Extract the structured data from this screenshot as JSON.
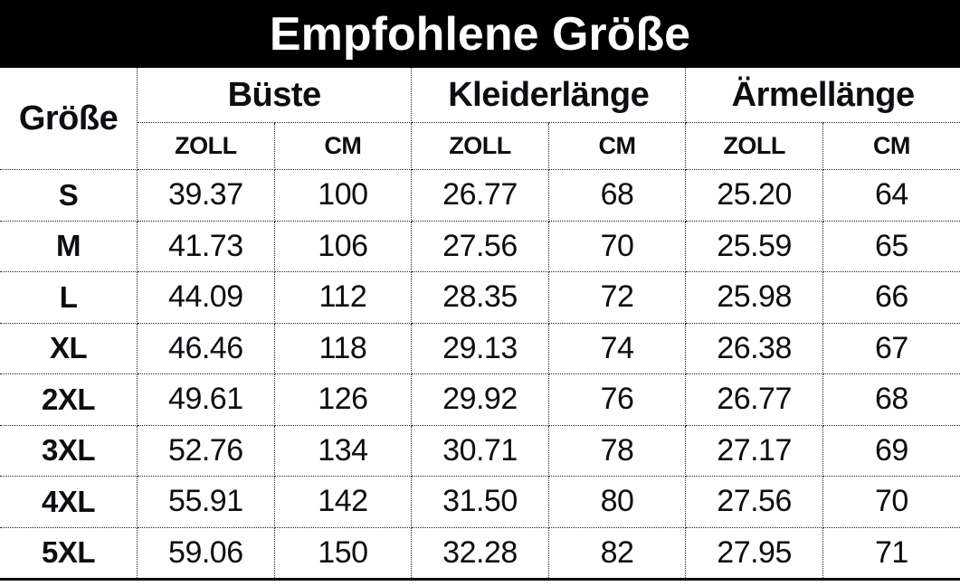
{
  "title": "Empfohlene Größe",
  "header": {
    "size_col": "Größe",
    "groups": [
      {
        "label": "Büste"
      },
      {
        "label": "Kleiderlänge"
      },
      {
        "label": "Ärmellänge"
      }
    ],
    "units": [
      "ZOLL",
      "CM",
      "ZOLL",
      "CM",
      "ZOLL",
      "CM"
    ]
  },
  "chart_data": {
    "type": "table",
    "title": "Empfohlene Größe",
    "columns": [
      "Größe",
      "Büste ZOLL",
      "Büste CM",
      "Kleiderlänge ZOLL",
      "Kleiderlänge CM",
      "Ärmellänge ZOLL",
      "Ärmellänge CM"
    ],
    "rows": [
      [
        "S",
        "39.37",
        "100",
        "26.77",
        "68",
        "25.20",
        "64"
      ],
      [
        "M",
        "41.73",
        "106",
        "27.56",
        "70",
        "25.59",
        "65"
      ],
      [
        "L",
        "44.09",
        "112",
        "28.35",
        "72",
        "25.98",
        "66"
      ],
      [
        "XL",
        "46.46",
        "118",
        "29.13",
        "74",
        "26.38",
        "67"
      ],
      [
        "2XL",
        "49.61",
        "126",
        "29.92",
        "76",
        "26.77",
        "68"
      ],
      [
        "3XL",
        "52.76",
        "134",
        "30.71",
        "78",
        "27.17",
        "69"
      ],
      [
        "4XL",
        "55.91",
        "142",
        "31.50",
        "80",
        "27.56",
        "70"
      ],
      [
        "5XL",
        "59.06",
        "150",
        "32.28",
        "82",
        "27.95",
        "71"
      ]
    ]
  },
  "colors": {
    "band_background": "#000000",
    "band_text": "#ffffff",
    "text": "#0d0d12",
    "grid": "#222222"
  }
}
